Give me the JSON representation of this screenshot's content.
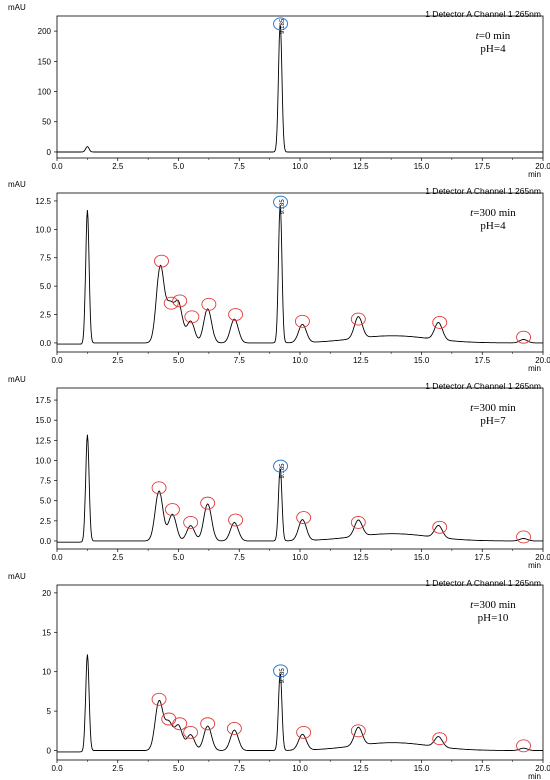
{
  "chart_data": [
    {
      "type": "line",
      "unit_label": "mAU",
      "header": "1 Detector A Channel 1 265nm",
      "xlabel": "min",
      "xlim": [
        0.0,
        20.0
      ],
      "xticks": [
        "0.0",
        "2.5",
        "5.0",
        "7.5",
        "10.0",
        "12.5",
        "15.0",
        "17.5",
        "20.0"
      ],
      "ylim": [
        -10,
        225
      ],
      "yticks": [
        "0",
        "50",
        "100",
        "150",
        "200"
      ],
      "condition": {
        "var": "t",
        "time_text": "=0 min",
        "ph_text": "pH=4"
      },
      "peaks": [
        [
          1.25,
          9
        ],
        [
          9.185,
          212
        ]
      ],
      "peak_label": "9.185",
      "red_marks": [],
      "blue_marks": [
        [
          9.2,
          212
        ]
      ]
    },
    {
      "type": "line",
      "unit_label": "mAU",
      "header": "1 Detector A Channel 1 265nm",
      "xlabel": "min",
      "xlim": [
        0.0,
        20.0
      ],
      "xticks": [
        "0.0",
        "2.5",
        "5.0",
        "7.5",
        "10.0",
        "12.5",
        "15.0",
        "17.5",
        "20.0"
      ],
      "ylim": [
        -0.8,
        13.2
      ],
      "yticks": [
        "0.0",
        "2.5",
        "5.0",
        "7.5",
        "10.0",
        "12.5"
      ],
      "condition": {
        "var": "t",
        "time_text": "=300 min",
        "ph_text": "pH=4"
      },
      "peaks": [
        [
          1.25,
          11.7
        ],
        [
          4.25,
          6.7
        ],
        [
          4.65,
          3.1
        ],
        [
          5.0,
          3.4
        ],
        [
          5.5,
          1.9
        ],
        [
          6.2,
          3.0
        ],
        [
          7.3,
          2.1
        ],
        [
          9.185,
          12.2
        ],
        [
          10.1,
          1.6
        ],
        [
          12.4,
          1.9
        ],
        [
          15.7,
          1.5
        ],
        [
          19.2,
          0.3
        ]
      ],
      "peak_label": "9.185",
      "red_marks": [
        [
          4.3,
          7.2
        ],
        [
          4.7,
          3.5
        ],
        [
          5.05,
          3.7
        ],
        [
          5.55,
          2.3
        ],
        [
          6.25,
          3.4
        ],
        [
          7.35,
          2.5
        ],
        [
          10.1,
          1.9
        ],
        [
          12.4,
          2.1
        ],
        [
          15.75,
          1.8
        ],
        [
          19.2,
          0.5
        ]
      ],
      "blue_marks": [
        [
          9.2,
          12.4
        ]
      ]
    },
    {
      "type": "line",
      "unit_label": "mAU",
      "header": "1 Detector A Channel 1 265nm",
      "xlabel": "min",
      "xlim": [
        0.0,
        20.0
      ],
      "xticks": [
        "0.0",
        "2.5",
        "5.0",
        "7.5",
        "10.0",
        "12.5",
        "15.0",
        "17.5",
        "20.0"
      ],
      "ylim": [
        -1,
        19
      ],
      "yticks": [
        "0.0",
        "2.5",
        "5.0",
        "7.5",
        "10.0",
        "12.5",
        "15.0",
        "17.5"
      ],
      "condition": {
        "var": "t",
        "time_text": "=300 min",
        "ph_text": "pH=7"
      },
      "peaks": [
        [
          1.25,
          13.2
        ],
        [
          4.2,
          6.2
        ],
        [
          4.75,
          3.3
        ],
        [
          5.5,
          1.9
        ],
        [
          6.2,
          4.6
        ],
        [
          7.3,
          2.3
        ],
        [
          9.185,
          9.0
        ],
        [
          10.1,
          2.6
        ],
        [
          12.4,
          2.0
        ],
        [
          15.7,
          1.5
        ],
        [
          19.2,
          0.3
        ]
      ],
      "peak_label": "9.185",
      "red_marks": [
        [
          4.2,
          6.6
        ],
        [
          4.75,
          3.9
        ],
        [
          5.5,
          2.3
        ],
        [
          6.2,
          4.7
        ],
        [
          7.35,
          2.6
        ],
        [
          10.15,
          2.9
        ],
        [
          12.4,
          2.3
        ],
        [
          15.75,
          1.7
        ],
        [
          19.2,
          0.5
        ]
      ],
      "blue_marks": [
        [
          9.2,
          9.3
        ]
      ]
    },
    {
      "type": "line",
      "unit_label": "mAU",
      "header": "1 Detector A Channel 1 265nm",
      "xlabel": "min",
      "xlim": [
        0.0,
        20.0
      ],
      "xticks": [
        "0.0",
        "2.5",
        "5.0",
        "7.5",
        "10.0",
        "12.5",
        "15.0",
        "17.5",
        "20.0"
      ],
      "ylim": [
        -1.2,
        21
      ],
      "yticks": [
        "0",
        "5",
        "10",
        "15",
        "20"
      ],
      "condition": {
        "var": "t",
        "time_text": "=300 min",
        "ph_text": "pH=10"
      },
      "peaks": [
        [
          1.25,
          12.2
        ],
        [
          4.2,
          6.2
        ],
        [
          4.6,
          3.4
        ],
        [
          5.0,
          3.1
        ],
        [
          5.5,
          2.0
        ],
        [
          6.2,
          3.1
        ],
        [
          7.3,
          2.6
        ],
        [
          9.185,
          9.8
        ],
        [
          10.1,
          2.0
        ],
        [
          12.4,
          2.3
        ],
        [
          15.7,
          1.3
        ],
        [
          19.2,
          0.3
        ]
      ],
      "peak_label": "9.185",
      "red_marks": [
        [
          4.2,
          6.5
        ],
        [
          4.6,
          4.0
        ],
        [
          5.05,
          3.4
        ],
        [
          5.5,
          2.3
        ],
        [
          6.2,
          3.4
        ],
        [
          7.3,
          2.8
        ],
        [
          10.15,
          2.3
        ],
        [
          12.4,
          2.5
        ],
        [
          15.75,
          1.5
        ],
        [
          19.2,
          0.6
        ]
      ],
      "blue_marks": [
        [
          9.2,
          10.1
        ]
      ]
    }
  ]
}
